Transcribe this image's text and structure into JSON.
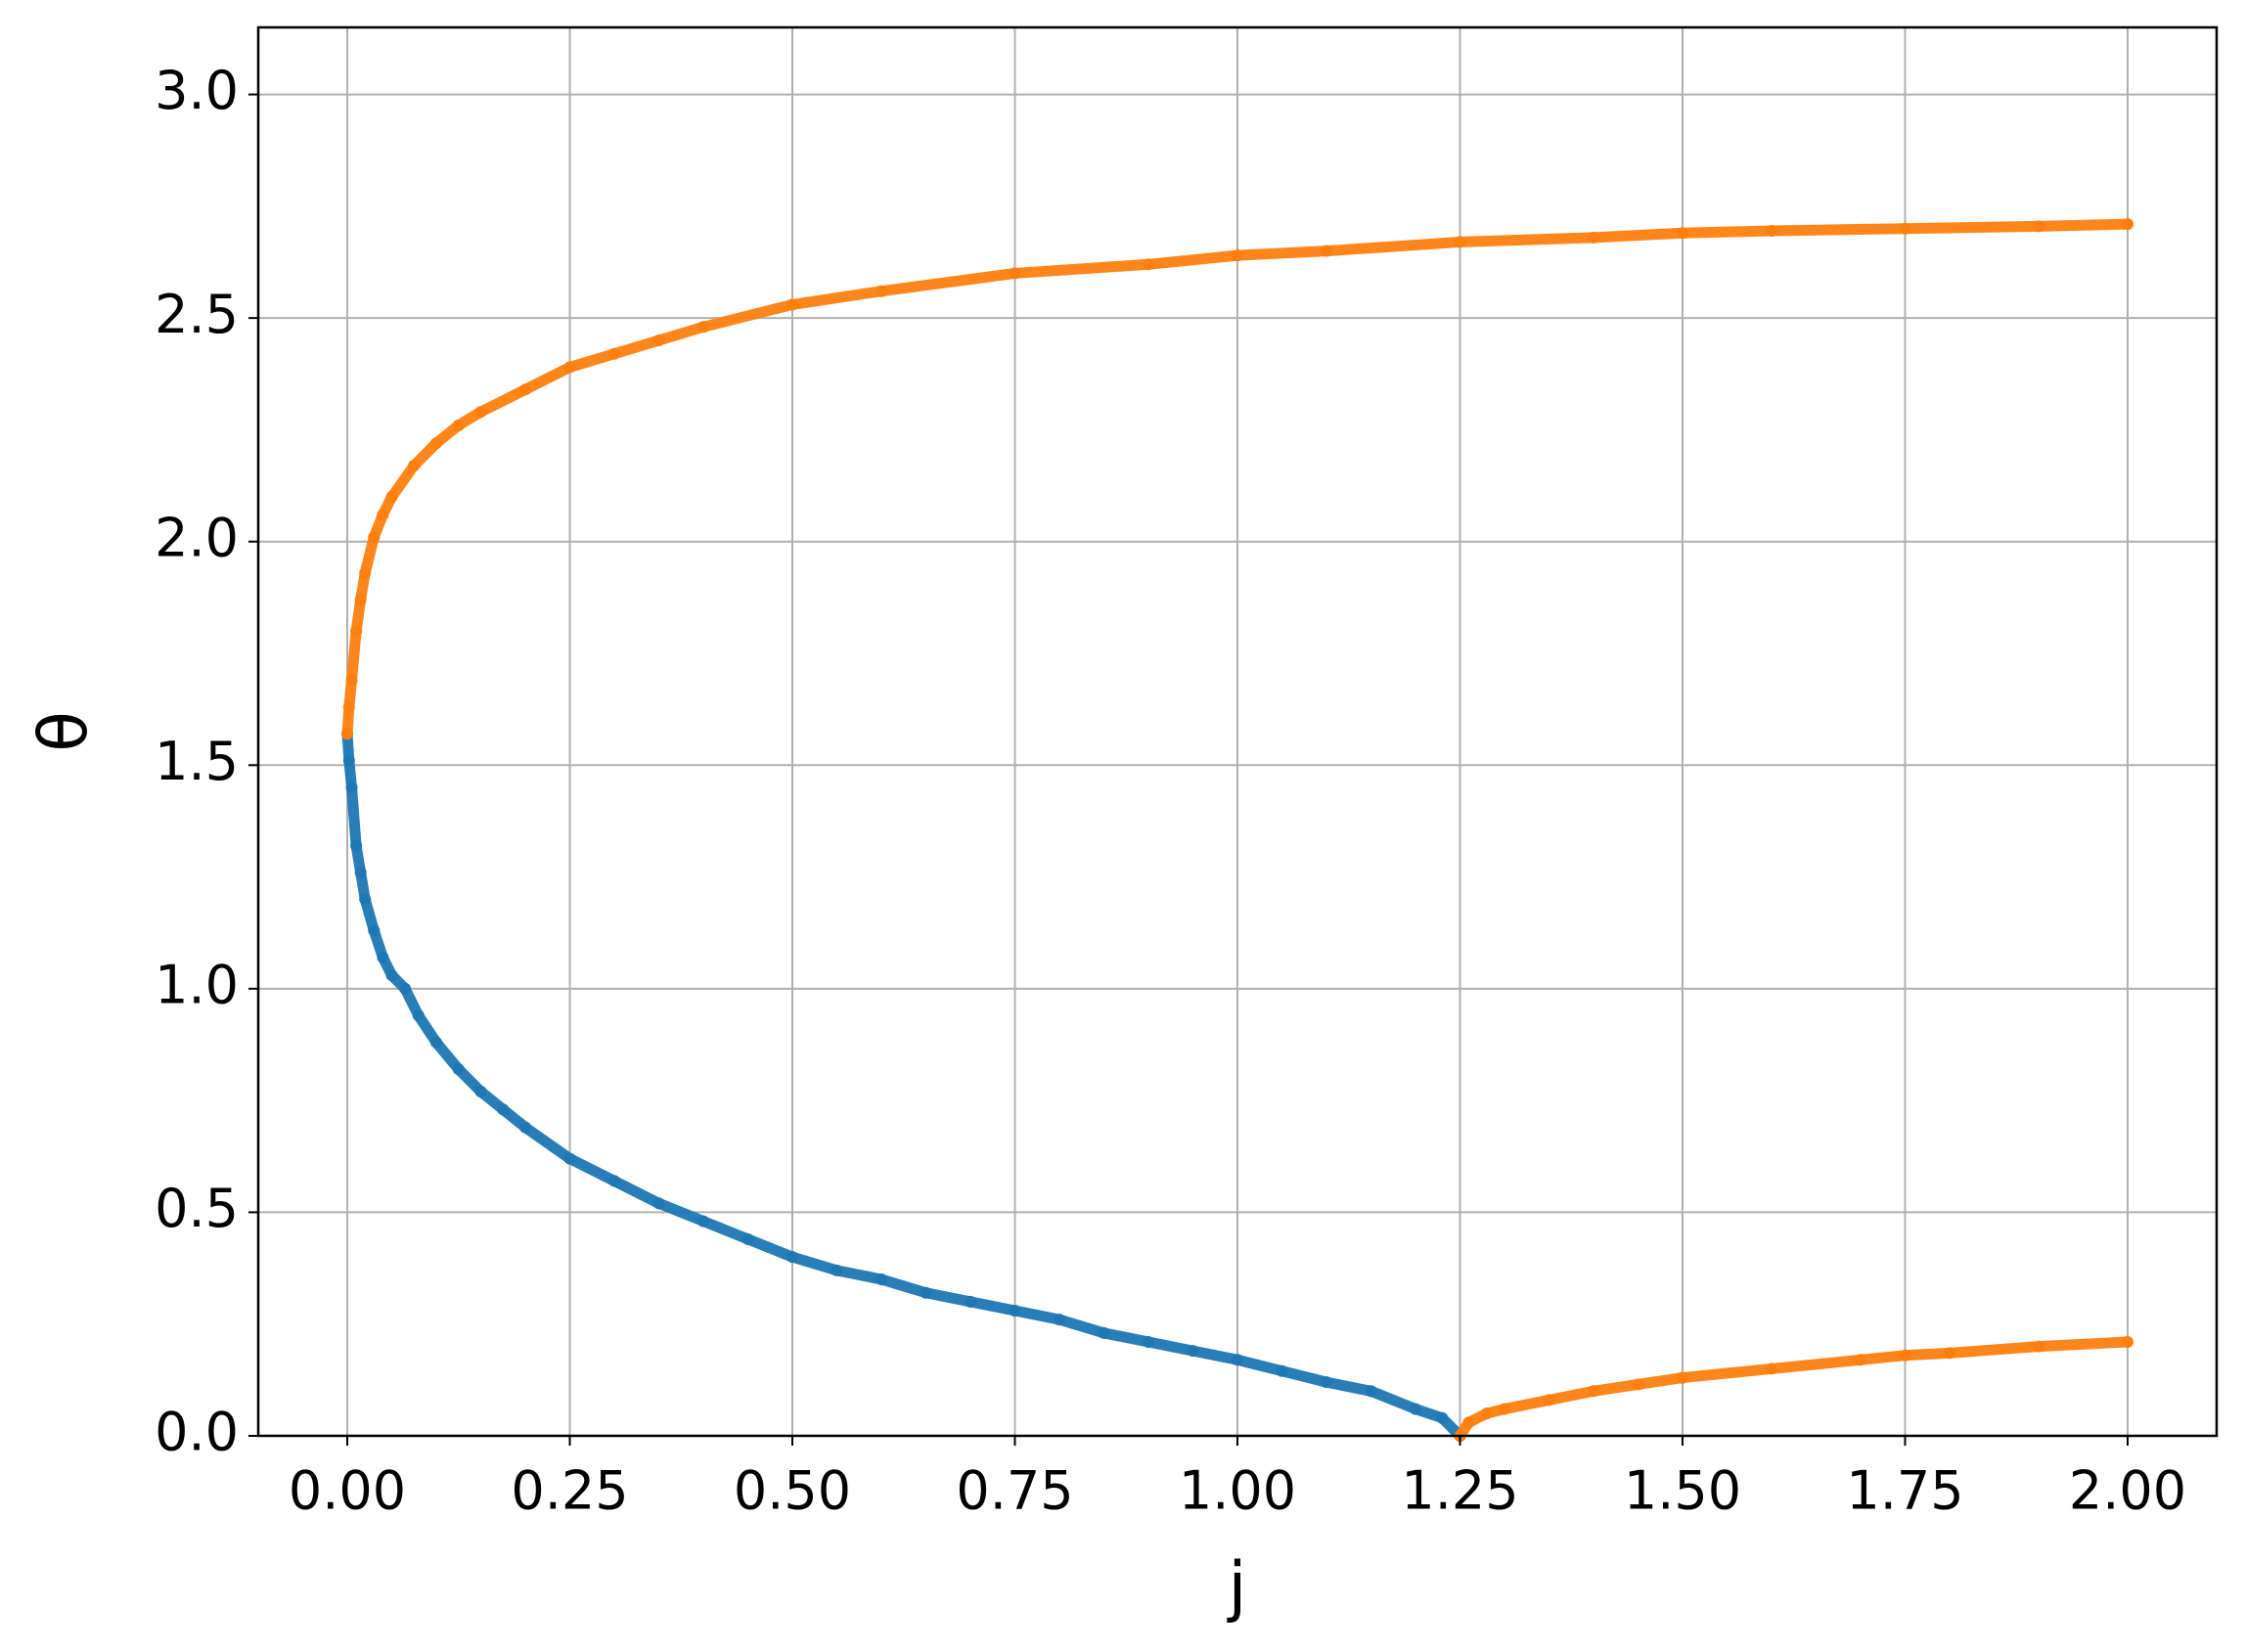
{
  "chart_data": {
    "type": "scatter",
    "x_label": "j",
    "y_label": "θ",
    "xlim": [
      -0.1,
      2.1
    ],
    "ylim": [
      0,
      3.15
    ],
    "xticks": [
      {
        "value": 0,
        "label": "0.00"
      },
      {
        "value": 0.25,
        "label": "0.25"
      },
      {
        "value": 0.5,
        "label": "0.50"
      },
      {
        "value": 0.75,
        "label": "0.75"
      },
      {
        "value": 1,
        "label": "1.00"
      },
      {
        "value": 1.25,
        "label": "1.25"
      },
      {
        "value": 1.5,
        "label": "1.50"
      },
      {
        "value": 1.75,
        "label": "1.75"
      },
      {
        "value": 2,
        "label": "2.00"
      }
    ],
    "yticks": [
      {
        "value": 0,
        "label": "0.0"
      },
      {
        "value": 0.5,
        "label": "0.5"
      },
      {
        "value": 1,
        "label": "1.0"
      },
      {
        "value": 1.5,
        "label": "1.5"
      },
      {
        "value": 2,
        "label": "2.0"
      },
      {
        "value": 2.5,
        "label": "2.5"
      },
      {
        "value": 3,
        "label": "3.0"
      }
    ],
    "grid": true,
    "series": [
      {
        "color": "#1f77b4",
        "x": [
          0,
          0.002,
          0.005,
          0.01,
          0.015,
          0.02,
          0.03,
          0.04,
          0.05,
          0.065,
          0.08,
          0.1,
          0.125,
          0.15,
          0.175,
          0.2,
          0.25,
          0.3,
          0.35,
          0.4,
          0.45,
          0.5,
          0.55,
          0.6,
          0.65,
          0.7,
          0.75,
          0.8,
          0.85,
          0.9,
          0.95,
          1.0,
          1.05,
          1.1,
          1.15,
          1.2,
          1.23,
          1.25
        ],
        "values": [
          1.57,
          1.51,
          1.45,
          1.32,
          1.26,
          1.2,
          1.13,
          1.07,
          1.03,
          1.0,
          0.94,
          0.88,
          0.82,
          0.77,
          0.73,
          0.69,
          0.62,
          0.57,
          0.52,
          0.48,
          0.44,
          0.4,
          0.37,
          0.35,
          0.32,
          0.3,
          0.28,
          0.26,
          0.23,
          0.21,
          0.19,
          0.17,
          0.145,
          0.12,
          0.1,
          0.06,
          0.04,
          0.0
        ]
      },
      {
        "color": "#ff7f0e",
        "x": [
          0,
          0.002,
          0.005,
          0.01,
          0.015,
          0.02,
          0.03,
          0.04,
          0.05,
          0.075,
          0.1,
          0.125,
          0.15,
          0.2,
          0.25,
          0.3,
          0.35,
          0.4,
          0.5,
          0.6,
          0.75,
          0.9,
          1.0,
          1.1,
          1.25,
          1.4,
          1.5,
          1.6,
          1.75,
          1.9,
          2.0
        ],
        "values": [
          1.57,
          1.63,
          1.69,
          1.8,
          1.87,
          1.93,
          2.01,
          2.06,
          2.1,
          2.17,
          2.22,
          2.26,
          2.29,
          2.34,
          2.39,
          2.42,
          2.45,
          2.48,
          2.53,
          2.56,
          2.6,
          2.62,
          2.64,
          2.65,
          2.67,
          2.68,
          2.69,
          2.695,
          2.7,
          2.705,
          2.71
        ]
      },
      {
        "color": "#ff7f0e",
        "x": [
          1.25,
          1.26,
          1.28,
          1.3,
          1.35,
          1.4,
          1.45,
          1.5,
          1.6,
          1.7,
          1.75,
          1.8,
          1.9,
          2.0
        ],
        "values": [
          0.0,
          0.03,
          0.05,
          0.06,
          0.08,
          0.1,
          0.115,
          0.13,
          0.15,
          0.17,
          0.18,
          0.185,
          0.2,
          0.21
        ]
      }
    ]
  }
}
